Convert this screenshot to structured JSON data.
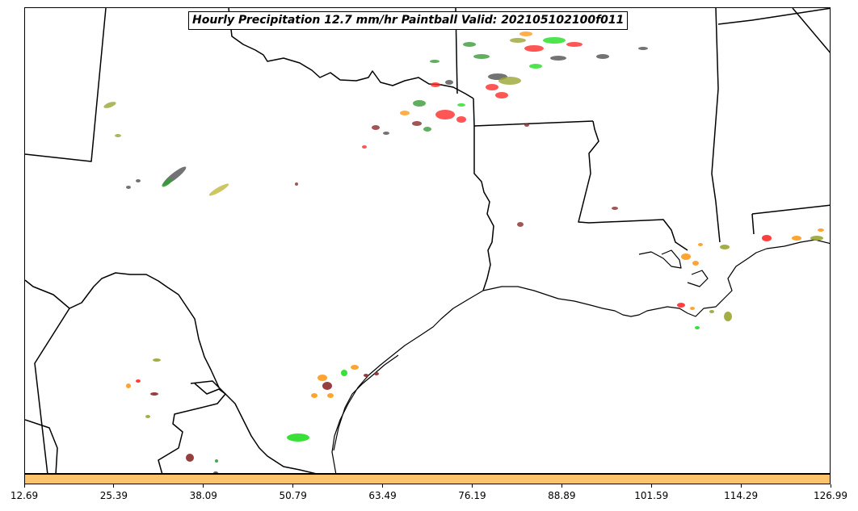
{
  "title": "Hourly Precipitation 12.7 mm/hr Paintball Valid: 202105102100f011",
  "colorbar": {
    "color": "#ffc36b",
    "ticks": [
      "12.69",
      "25.39",
      "38.09",
      "50.79",
      "63.49",
      "76.19",
      "88.89",
      "101.59",
      "114.29",
      "126.99"
    ]
  },
  "colors": {
    "red": "#ff2a2a",
    "green": "#22dd22",
    "dark-green": "#3a9a3a",
    "olive": "#9aa533",
    "khaki": "#c8c050",
    "orange": "#ff9a1a",
    "dark-red": "#8a2a2a",
    "gray": "#505050"
  }
}
